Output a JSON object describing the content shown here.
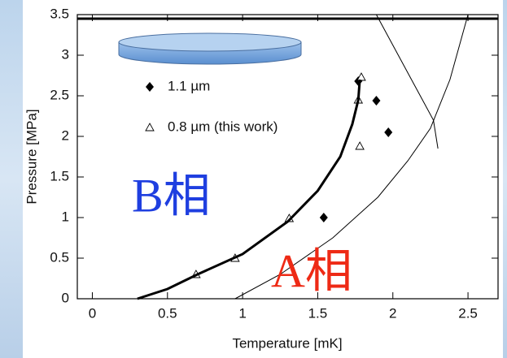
{
  "chart_data": {
    "type": "scatter",
    "xlabel": "Temperature [mK]",
    "ylabel": "Pressure [MPa]",
    "xlim": [
      -0.1,
      2.7
    ],
    "ylim": [
      0,
      3.5
    ],
    "xticks": [
      0,
      0.5,
      1,
      1.5,
      2,
      2.5
    ],
    "yticks": [
      0,
      0.5,
      1,
      1.5,
      2,
      2.5,
      3,
      3.5
    ],
    "series": [
      {
        "name": "1.1 µm",
        "type": "scatter",
        "marker": "diamond",
        "color": "#000000",
        "x": [
          1.77,
          1.89,
          1.97,
          1.54
        ],
        "values": [
          2.68,
          2.44,
          2.05,
          1.0
        ]
      },
      {
        "name": "0.8 µm (this work)",
        "type": "scatter",
        "marker": "triangle",
        "color": "#000000",
        "x": [
          0.69,
          0.95,
          1.31,
          1.77,
          1.79,
          1.78
        ],
        "values": [
          0.3,
          0.5,
          0.99,
          2.45,
          2.73,
          1.88
        ]
      },
      {
        "type": "line",
        "color": "#000000",
        "width": 3,
        "x": [
          0.3,
          0.5,
          0.7,
          1.0,
          1.3,
          1.5,
          1.65,
          1.73,
          1.77,
          1.78
        ],
        "values": [
          0,
          0.12,
          0.3,
          0.55,
          0.95,
          1.33,
          1.75,
          2.15,
          2.45,
          2.7
        ]
      },
      {
        "type": "line",
        "color": "#000000",
        "width": 1,
        "x": [
          0.95,
          1.25,
          1.6,
          1.9,
          2.1,
          2.25,
          2.38,
          2.47,
          2.5
        ],
        "values": [
          0,
          0.3,
          0.75,
          1.25,
          1.7,
          2.1,
          2.7,
          3.3,
          3.5
        ]
      },
      {
        "type": "line",
        "color": "#000000",
        "width": 1,
        "x": [
          1.89,
          2.27,
          2.3
        ],
        "values": [
          3.5,
          2.2,
          1.85
        ]
      },
      {
        "type": "line",
        "color": "#000000",
        "width": 3,
        "x": [
          -0.1,
          2.7
        ],
        "values": [
          3.45,
          3.45
        ]
      }
    ],
    "annotations": [
      {
        "text": "B相",
        "color": "#1f3fe0"
      },
      {
        "text": "A相",
        "color": "#ee2a15"
      }
    ]
  }
}
